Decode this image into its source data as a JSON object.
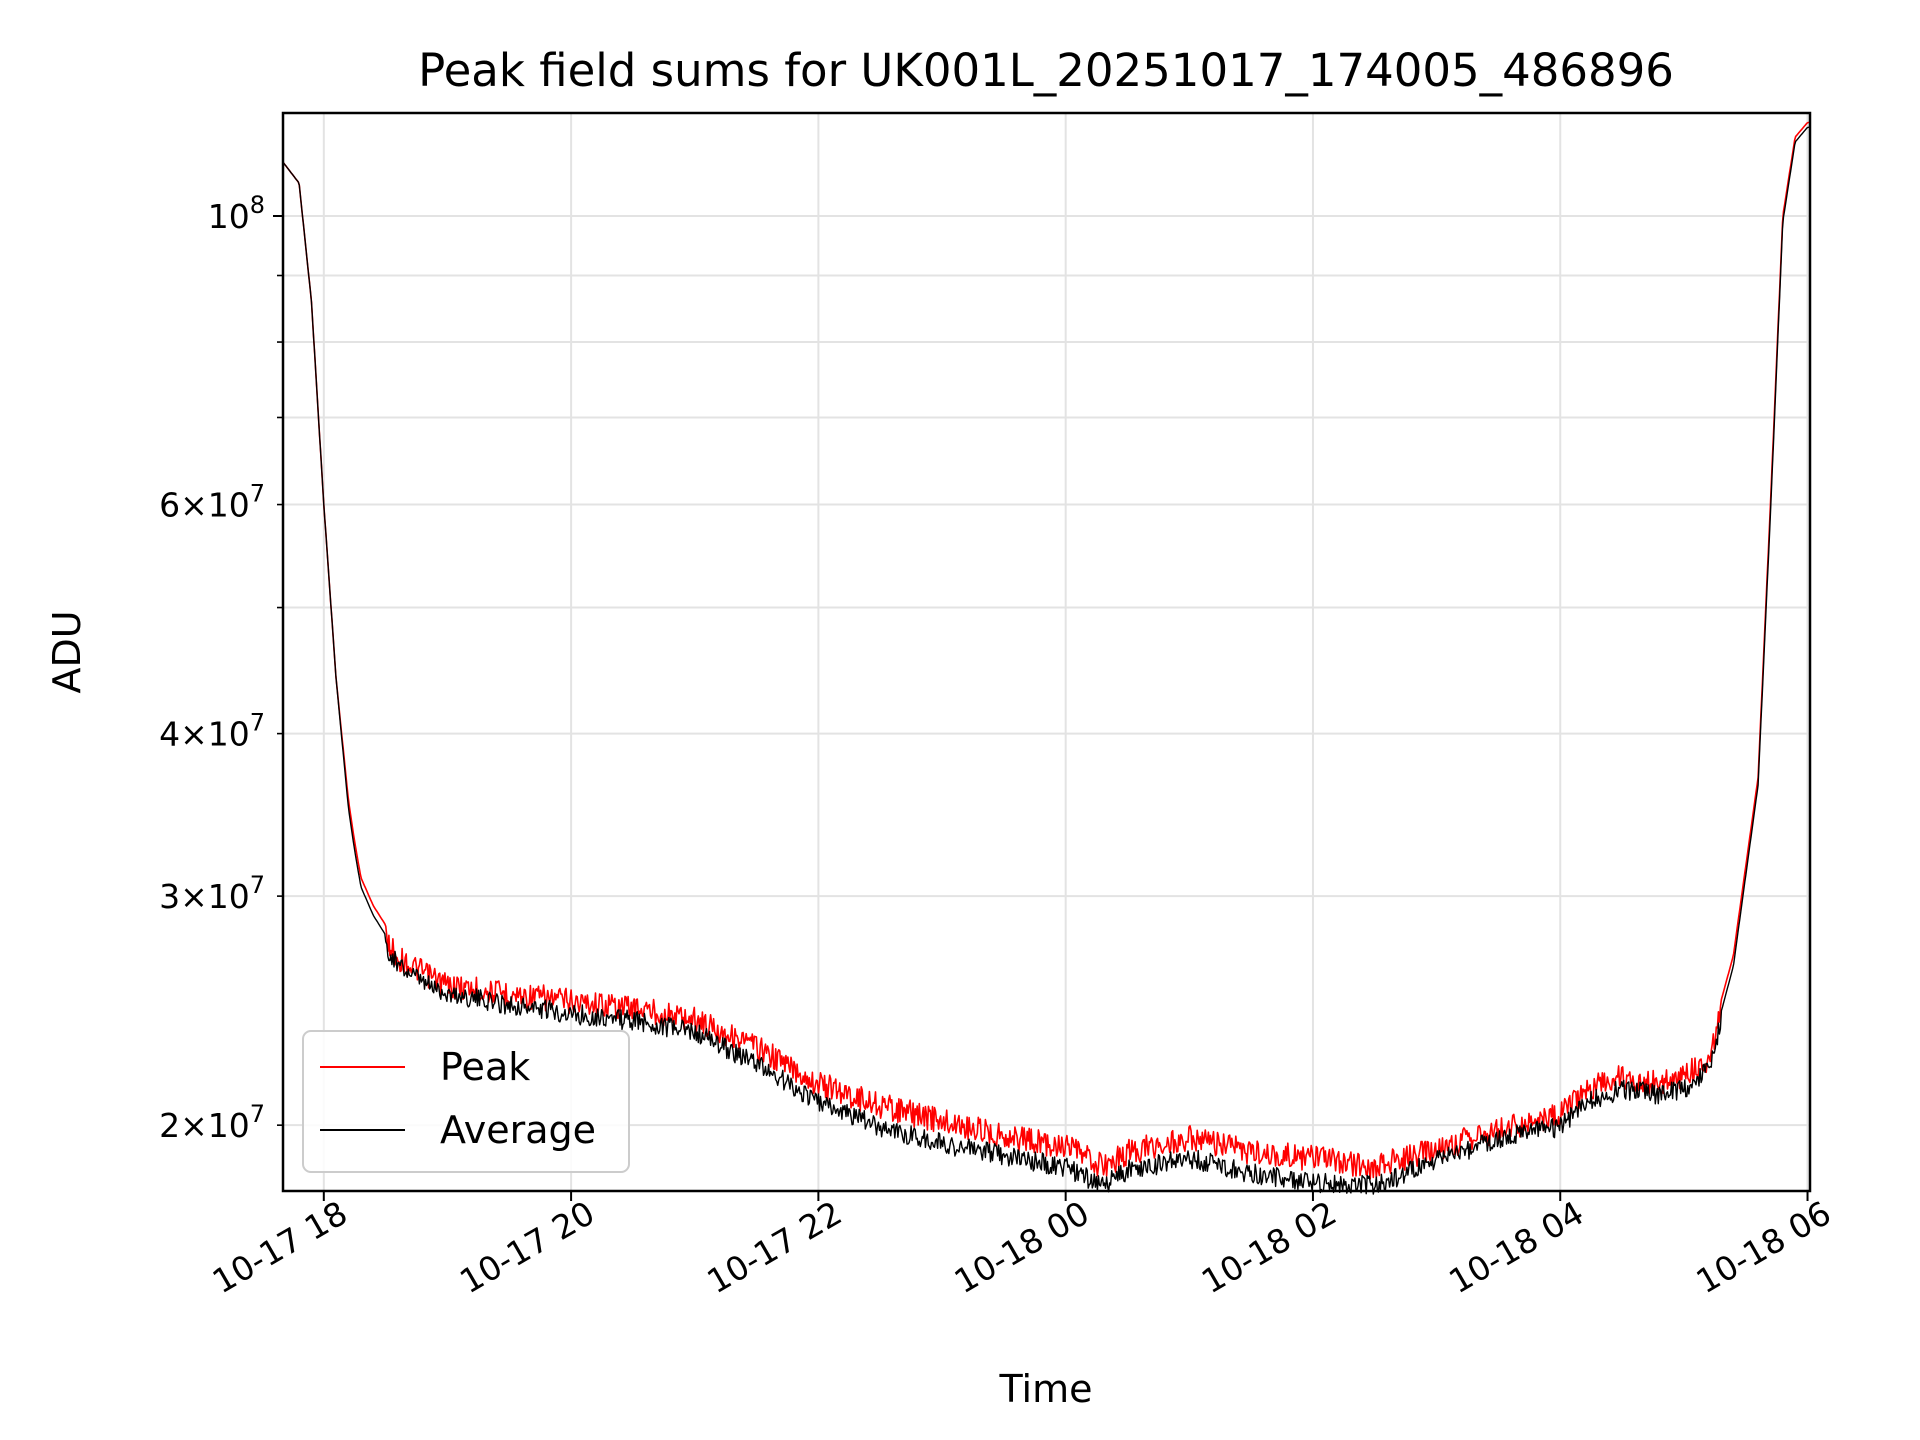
{
  "chart_data": {
    "type": "line",
    "title": "Peak field sums for UK001L_20251017_174005_486896",
    "xlabel": "Time",
    "ylabel": "ADU",
    "yscale": "log",
    "grid": true,
    "legend_position": "lower-left",
    "xlim_hours": [
      -0.33,
      12.02
    ],
    "ylim": [
      17800000,
      120000000
    ],
    "x_ticks": [
      {
        "value": 0,
        "label": "10-17 18"
      },
      {
        "value": 2,
        "label": "10-17 20"
      },
      {
        "value": 4,
        "label": "10-17 22"
      },
      {
        "value": 6,
        "label": "10-18 00"
      },
      {
        "value": 8,
        "label": "10-18 02"
      },
      {
        "value": 10,
        "label": "10-18 04"
      },
      {
        "value": 12,
        "label": "10-18 06"
      }
    ],
    "y_major_ticks": [
      {
        "value": 100000000,
        "base": "10",
        "exp": "8",
        "coef": ""
      }
    ],
    "y_minor_ticks": [
      {
        "value": 20000000,
        "coef": "2",
        "base": "10",
        "exp": "7"
      },
      {
        "value": 30000000,
        "coef": "3",
        "base": "10",
        "exp": "7"
      },
      {
        "value": 40000000,
        "coef": "4",
        "base": "10",
        "exp": "7"
      },
      {
        "value": 60000000,
        "coef": "6",
        "base": "10",
        "exp": "7"
      }
    ],
    "y_minor_unlabeled": [
      50000000,
      70000000,
      80000000,
      90000000
    ],
    "times_hours": [
      -0.33,
      -0.2,
      -0.1,
      0.0,
      0.1,
      0.2,
      0.25,
      0.3,
      0.4,
      0.5,
      0.6,
      0.8,
      1.0,
      1.5,
      2.0,
      2.5,
      3.0,
      3.5,
      4.0,
      4.5,
      5.0,
      5.5,
      6.0,
      6.3,
      6.5,
      7.0,
      7.5,
      8.0,
      8.5,
      9.0,
      9.5,
      10.0,
      10.2,
      10.5,
      10.8,
      11.0,
      11.2,
      11.4,
      11.6,
      11.7,
      11.8,
      11.9,
      12.0
    ],
    "series": [
      {
        "name": "Peak",
        "color": "#ff0000",
        "values": [
          110000000,
          106000000,
          86000000,
          60000000,
          44000000,
          35500000,
          33000000,
          31000000,
          29500000,
          28500000,
          27500000,
          26800000,
          26200000,
          25800000,
          25500000,
          25200000,
          24700000,
          23500000,
          22000000,
          21200000,
          20600000,
          20100000,
          19700000,
          19000000,
          19500000,
          20000000,
          19500000,
          19300000,
          19000000,
          19600000,
          20300000,
          20800000,
          21800000,
          22300000,
          22000000,
          22300000,
          23000000,
          27000000,
          37000000,
          60000000,
          100000000,
          115000000,
          118000000
        ]
      },
      {
        "name": "Average",
        "color": "#000000",
        "values": [
          110000000,
          106000000,
          86000000,
          60000000,
          44000000,
          35000000,
          32500000,
          30500000,
          29000000,
          28000000,
          27000000,
          26200000,
          25700000,
          25200000,
          24800000,
          24500000,
          24000000,
          22700000,
          21200000,
          20300000,
          19700000,
          19300000,
          18900000,
          18300000,
          18800000,
          19200000,
          18700000,
          18400000,
          18300000,
          19100000,
          19900000,
          20300000,
          21200000,
          21700000,
          21500000,
          21700000,
          22500000,
          26500000,
          36500000,
          59000000,
          99000000,
          114000000,
          117000000
        ]
      }
    ]
  }
}
